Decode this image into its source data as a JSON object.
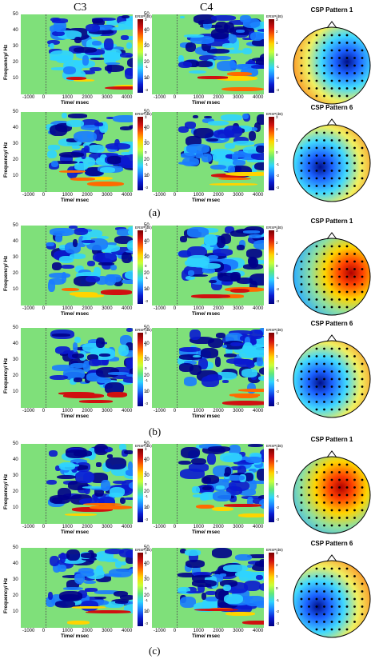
{
  "column_headers": [
    "C3",
    "C4"
  ],
  "panel_labels": [
    "(a)",
    "(b)",
    "(c)"
  ],
  "axes": {
    "ylabel": "Frequency/ Hz",
    "xlabel": "Time/ msec",
    "yticks": [
      "50",
      "40",
      "30",
      "20",
      "10"
    ],
    "xticks": [
      "-1000",
      "0",
      "1000",
      "2000",
      "3000",
      "4000"
    ]
  },
  "colorbar": {
    "title": "ERSP(dB)",
    "ticks": [
      "3",
      "2",
      "1",
      "0",
      "-1",
      "-2",
      "-3"
    ]
  },
  "topo_titles": [
    "CSP Pattern 1",
    "CSP Pattern 6",
    "CSP Pattern 1",
    "CSP Pattern 6",
    "CSP Pattern 1",
    "CSP Pattern 6"
  ]
}
